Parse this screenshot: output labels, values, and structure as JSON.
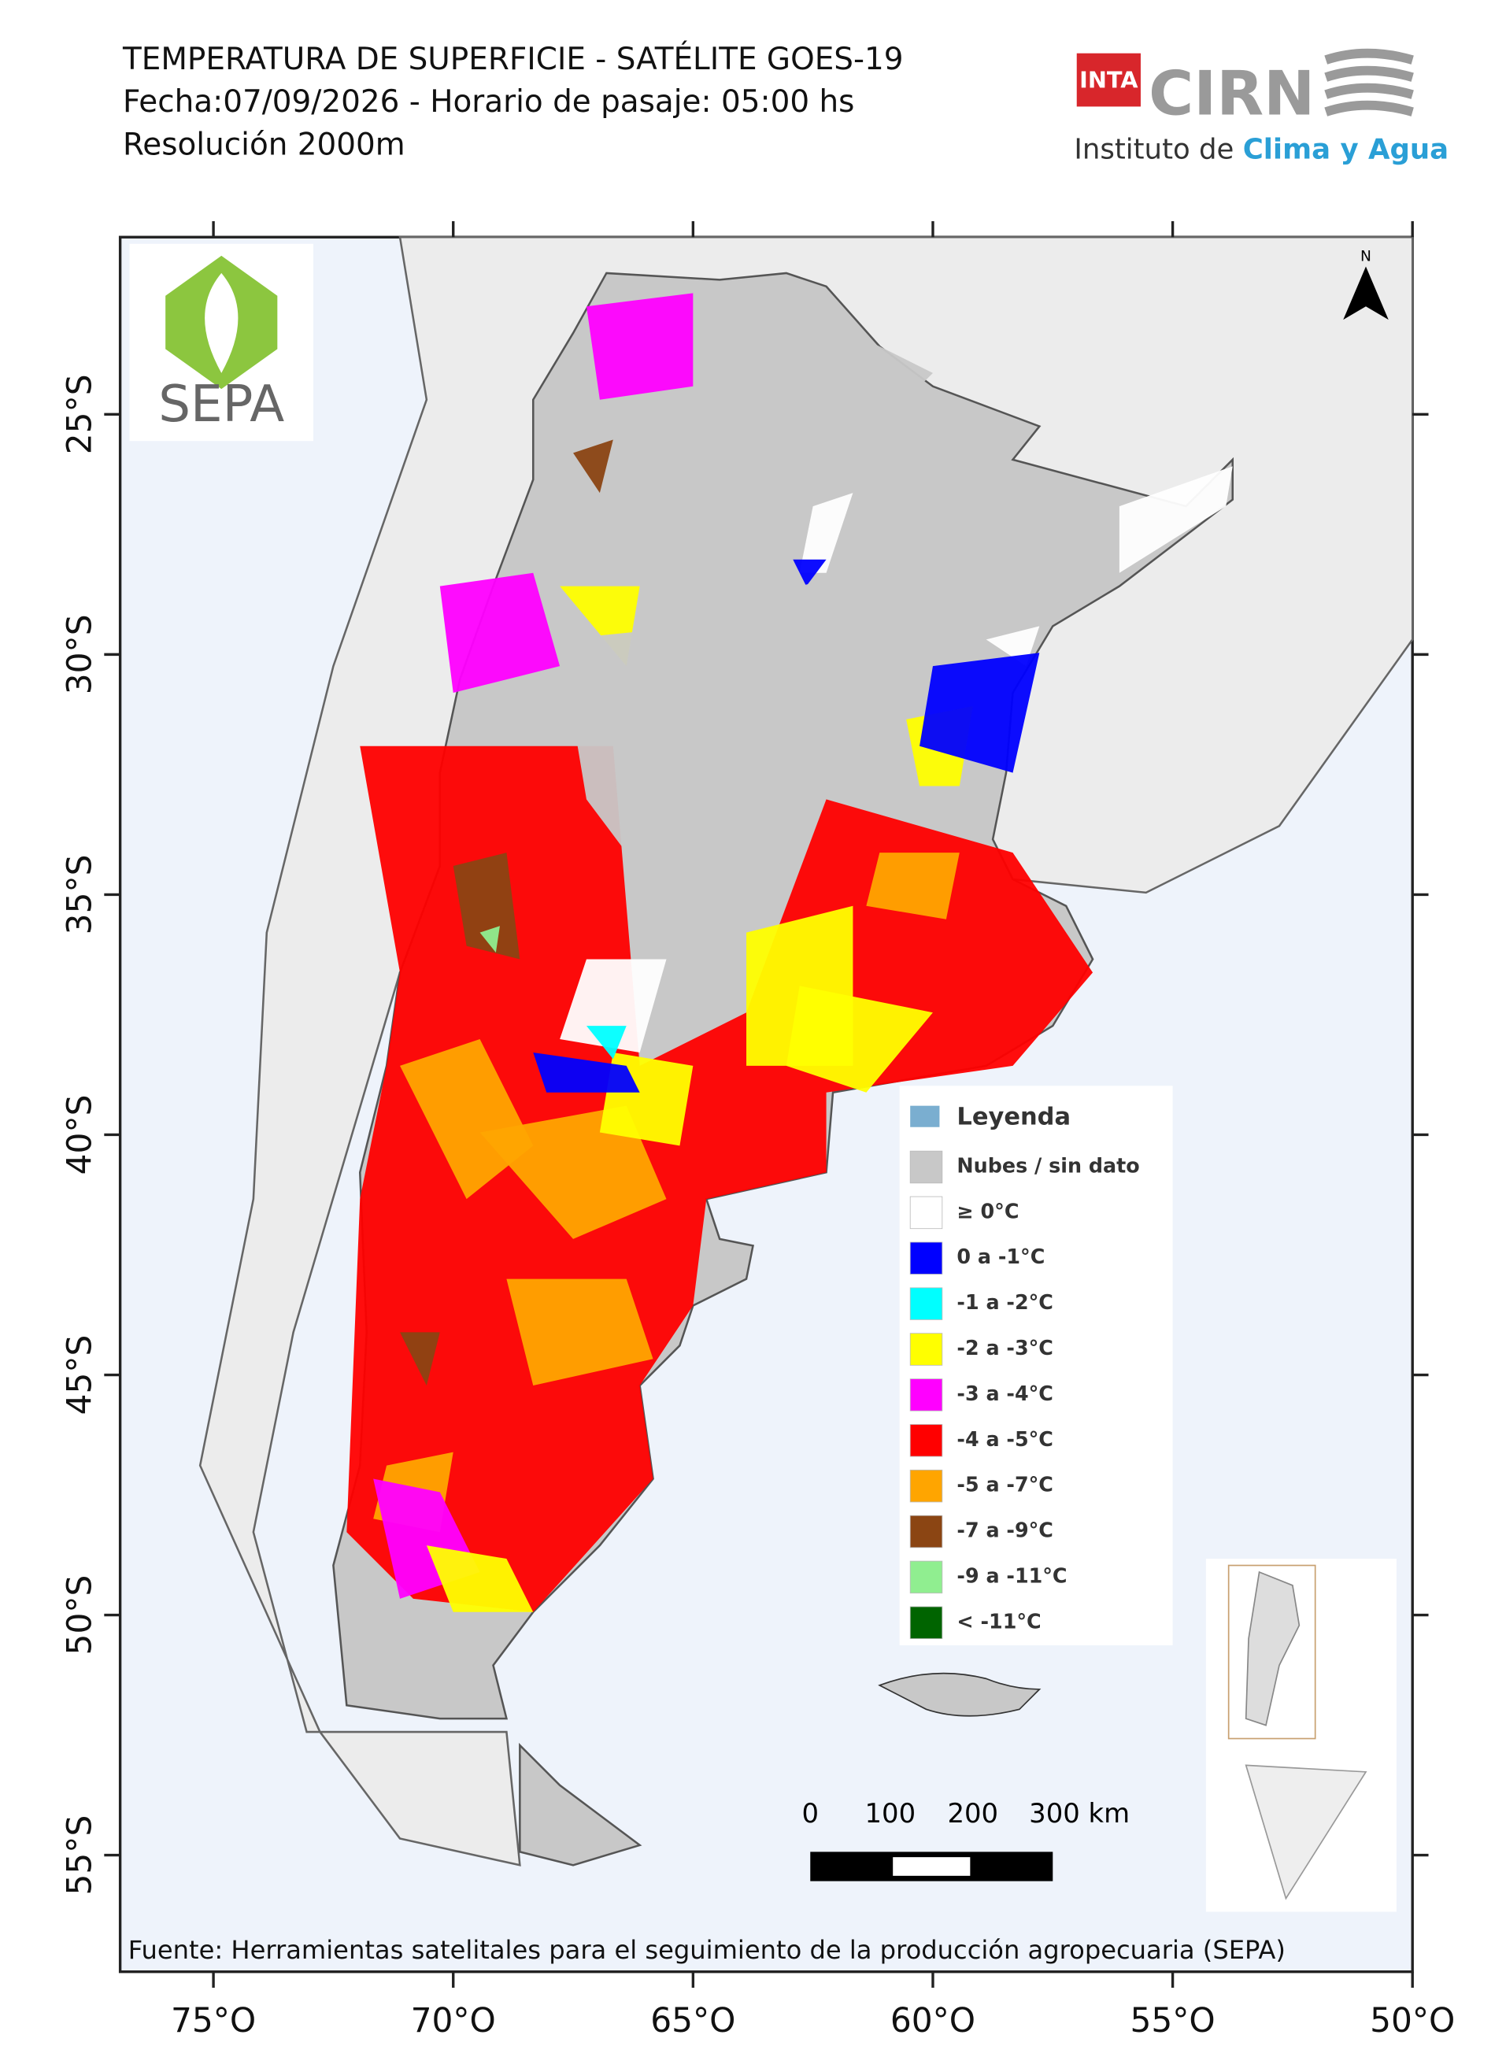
{
  "header": {
    "lines": [
      "TEMPERATURA DE SUPERFICIE - SATÉLITE GOES-19",
      "Fecha:07/09/2026 - Horario de pasaje: 05:00 hs",
      "Resolución 2000m"
    ]
  },
  "logos": {
    "inta": "INTA",
    "cirn": "CIRN",
    "institute": "Instituto de ",
    "institute_highlight": "Clima y Agua",
    "sepa": "SEPA"
  },
  "map": {
    "north": "N",
    "lon_ticks": [
      {
        "value": -75,
        "label": "75°O"
      },
      {
        "value": -70,
        "label": "70°O"
      },
      {
        "value": -65,
        "label": "65°O"
      },
      {
        "value": -60,
        "label": "60°O"
      },
      {
        "value": -55,
        "label": "55°O"
      },
      {
        "value": -50,
        "label": "50°O"
      }
    ],
    "lat_ticks": [
      {
        "value": -25,
        "label": "25°S"
      },
      {
        "value": -30,
        "label": "30°S"
      },
      {
        "value": -35,
        "label": "35°S"
      },
      {
        "value": -40,
        "label": "40°S"
      },
      {
        "value": -45,
        "label": "45°S"
      },
      {
        "value": -50,
        "label": "50°S"
      },
      {
        "value": -55,
        "label": "55°S"
      }
    ],
    "scale_bar": [
      "0",
      "100",
      "200",
      "300 km"
    ]
  },
  "legend": {
    "title": "Leyenda",
    "items": [
      {
        "label": "Nubes / sin dato",
        "color": "#c8c8c8"
      },
      {
        "label": "≥ 0°C",
        "color": "#ffffff"
      },
      {
        "label": "0 a -1°C",
        "color": "#0000ff"
      },
      {
        "label": "-1 a -2°C",
        "color": "#00ffff"
      },
      {
        "label": "-2 a -3°C",
        "color": "#ffff00"
      },
      {
        "label": "-3 a -4°C",
        "color": "#ff00ff"
      },
      {
        "label": "-4 a -5°C",
        "color": "#ff0000"
      },
      {
        "label": "-5 a -7°C",
        "color": "#ffa500"
      },
      {
        "label": "-7 a -9°C",
        "color": "#8b4513"
      },
      {
        "label": "-9 a -11°C",
        "color": "#90ee90"
      },
      {
        "label": "< -11°C",
        "color": "#006400"
      }
    ]
  },
  "source": "Fuente: Herramientas satelitales para el seguimiento de la producción agropecuaria (SEPA)"
}
